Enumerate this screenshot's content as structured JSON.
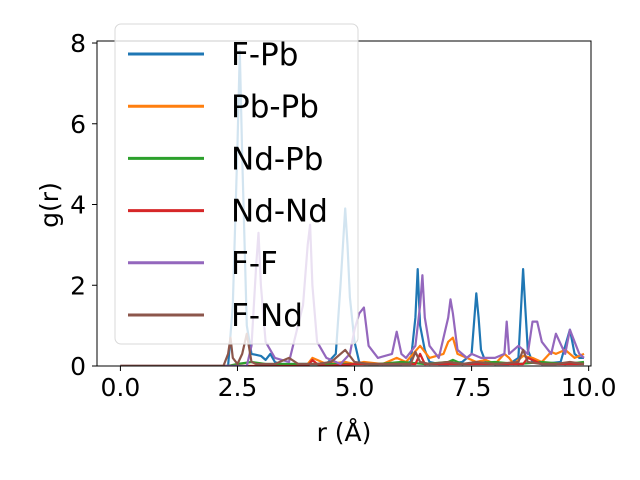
{
  "chart_data": {
    "type": "line",
    "xlabel": "r (Å)",
    "ylabel": "g(r)",
    "xlim": [
      -0.5,
      10.05
    ],
    "ylim": [
      0,
      8.05
    ],
    "xticks": [
      {
        "value": 0.0,
        "label": "0.0"
      },
      {
        "value": 2.5,
        "label": "2.5"
      },
      {
        "value": 5.0,
        "label": "5.0"
      },
      {
        "value": 7.5,
        "label": "7.5"
      },
      {
        "value": 10.0,
        "label": "10.0"
      }
    ],
    "yticks": [
      {
        "value": 0,
        "label": "0"
      },
      {
        "value": 2,
        "label": "2"
      },
      {
        "value": 4,
        "label": "4"
      },
      {
        "value": 6,
        "label": "6"
      },
      {
        "value": 8,
        "label": "8"
      }
    ],
    "grid": false,
    "legend_position": "top-left",
    "series": [
      {
        "name": "F-Pb",
        "color": "#1f77b4",
        "x": [
          0.0,
          2.3,
          2.4,
          2.5,
          2.55,
          2.6,
          2.7,
          2.8,
          3.0,
          3.1,
          3.2,
          3.3,
          3.4,
          4.4,
          4.6,
          4.7,
          4.8,
          4.85,
          4.9,
          5.0,
          5.1,
          5.2,
          5.6,
          6.0,
          6.2,
          6.3,
          6.35,
          6.4,
          6.5,
          6.6,
          6.8,
          7.0,
          7.3,
          7.5,
          7.6,
          7.65,
          7.7,
          7.8,
          8.0,
          8.3,
          8.5,
          8.6,
          8.65,
          8.7,
          8.8,
          9.0,
          9.4,
          9.6,
          9.65,
          9.7,
          9.8,
          9.9
        ],
        "y": [
          0,
          0,
          1.5,
          5.5,
          7.8,
          5.2,
          1.0,
          0.3,
          0.25,
          0.15,
          0.3,
          0.1,
          0.05,
          0.05,
          0.3,
          2.0,
          3.9,
          3.0,
          1.7,
          0.6,
          0.1,
          0.05,
          0.05,
          0.05,
          0.1,
          1.2,
          2.4,
          1.0,
          0.4,
          0.1,
          0.05,
          0.05,
          0.1,
          0.3,
          1.8,
          1.2,
          0.4,
          0.1,
          0.05,
          0.05,
          0.2,
          2.4,
          1.4,
          0.4,
          0.1,
          0.05,
          0.1,
          0.9,
          0.6,
          0.3,
          0.2,
          0.2
        ]
      },
      {
        "name": "Pb-Pb",
        "color": "#ff7f0e",
        "x": [
          0.0,
          3.8,
          4.0,
          4.1,
          4.2,
          4.4,
          4.8,
          5.0,
          5.2,
          5.6,
          5.9,
          6.1,
          6.4,
          6.6,
          6.9,
          7.0,
          7.1,
          7.2,
          7.4,
          7.6,
          7.8,
          8.0,
          8.2,
          8.3,
          8.4,
          8.6,
          8.8,
          9.0,
          9.2,
          9.3,
          9.5,
          9.7,
          9.9
        ],
        "y": [
          0,
          0,
          0.05,
          0.2,
          0.15,
          0.05,
          0.1,
          0.05,
          0.1,
          0.05,
          0.2,
          0.1,
          0.5,
          0.2,
          0.3,
          0.6,
          0.7,
          0.3,
          0.2,
          0.1,
          0.15,
          0.05,
          0.3,
          0.2,
          0.05,
          0.25,
          0.2,
          0.1,
          0.35,
          0.3,
          0.4,
          0.2,
          0.3
        ]
      },
      {
        "name": "Nd-Pb",
        "color": "#2ca02c",
        "x": [
          0.0,
          2.3,
          2.5,
          2.8,
          3.1,
          3.5,
          4.0,
          4.5,
          5.0,
          5.5,
          6.0,
          6.5,
          7.0,
          7.1,
          7.3,
          8.0,
          8.5,
          9.0,
          9.5,
          9.9
        ],
        "y": [
          0,
          0,
          0.05,
          0.1,
          0.05,
          0.05,
          0.05,
          0.05,
          0.05,
          0.05,
          0.1,
          0.05,
          0.1,
          0.15,
          0.05,
          0.1,
          0.05,
          0.1,
          0.05,
          0.1
        ]
      },
      {
        "name": "Nd-Nd",
        "color": "#d62728",
        "x": [
          0.0,
          4.0,
          4.1,
          4.2,
          4.4,
          5.0,
          6.3,
          6.4,
          6.5,
          7.0,
          8.0,
          8.6,
          8.7,
          9.0,
          9.9
        ],
        "y": [
          0,
          0,
          0.15,
          0.05,
          0.0,
          0.05,
          0.05,
          0.3,
          0.05,
          0.05,
          0.05,
          0.05,
          0.2,
          0.05,
          0.05
        ]
      },
      {
        "name": "F-F",
        "color": "#9467bd",
        "x": [
          0.0,
          2.7,
          2.8,
          2.9,
          2.95,
          3.0,
          3.1,
          3.3,
          3.6,
          3.9,
          4.0,
          4.05,
          4.1,
          4.2,
          4.4,
          4.7,
          4.9,
          5.0,
          5.1,
          5.2,
          5.3,
          5.5,
          5.8,
          5.9,
          6.0,
          6.1,
          6.3,
          6.4,
          6.45,
          6.5,
          6.6,
          6.8,
          7.0,
          7.05,
          7.1,
          7.2,
          7.4,
          7.5,
          7.7,
          8.0,
          8.2,
          8.25,
          8.3,
          8.5,
          8.7,
          8.8,
          8.9,
          9.0,
          9.2,
          9.3,
          9.5,
          9.6,
          9.7,
          9.8,
          9.9
        ],
        "y": [
          0,
          0,
          0.5,
          2.5,
          3.3,
          2.0,
          0.6,
          0.2,
          0.1,
          1.5,
          3.0,
          3.5,
          2.0,
          0.6,
          0.2,
          0.05,
          0.3,
          0.9,
          1.3,
          1.45,
          0.5,
          0.2,
          0.3,
          0.85,
          0.3,
          0.2,
          0.5,
          1.5,
          2.25,
          1.2,
          0.5,
          0.2,
          1.2,
          1.65,
          1.3,
          0.4,
          0.2,
          0.3,
          0.2,
          0.2,
          0.3,
          1.1,
          0.3,
          0.5,
          0.3,
          1.1,
          1.1,
          0.6,
          0.3,
          0.8,
          0.3,
          0.9,
          0.6,
          0.3,
          0.2
        ]
      },
      {
        "name": "F-Nd",
        "color": "#8c564b",
        "x": [
          0.0,
          2.2,
          2.3,
          2.35,
          2.4,
          2.5,
          2.6,
          2.7,
          2.8,
          2.9,
          3.0,
          3.3,
          3.6,
          3.8,
          4.0,
          4.2,
          4.5,
          4.8,
          5.0,
          5.3,
          5.6,
          5.9,
          6.2,
          6.3,
          6.4,
          6.6,
          7.0,
          7.3,
          7.6,
          8.0,
          8.5,
          8.6,
          8.7,
          9.0,
          9.3,
          9.6,
          9.9
        ],
        "y": [
          0,
          0,
          0.3,
          0.7,
          0.2,
          0.05,
          0.3,
          0.8,
          0.1,
          0.05,
          0.05,
          0.05,
          0.2,
          0.05,
          0.05,
          0.05,
          0.1,
          0.4,
          0.1,
          0.05,
          0.05,
          0.05,
          0.05,
          0.35,
          0.1,
          0.05,
          0.1,
          0.05,
          0.1,
          0.05,
          0.1,
          0.4,
          0.1,
          0.05,
          0.05,
          0.1,
          0.05
        ]
      }
    ]
  }
}
